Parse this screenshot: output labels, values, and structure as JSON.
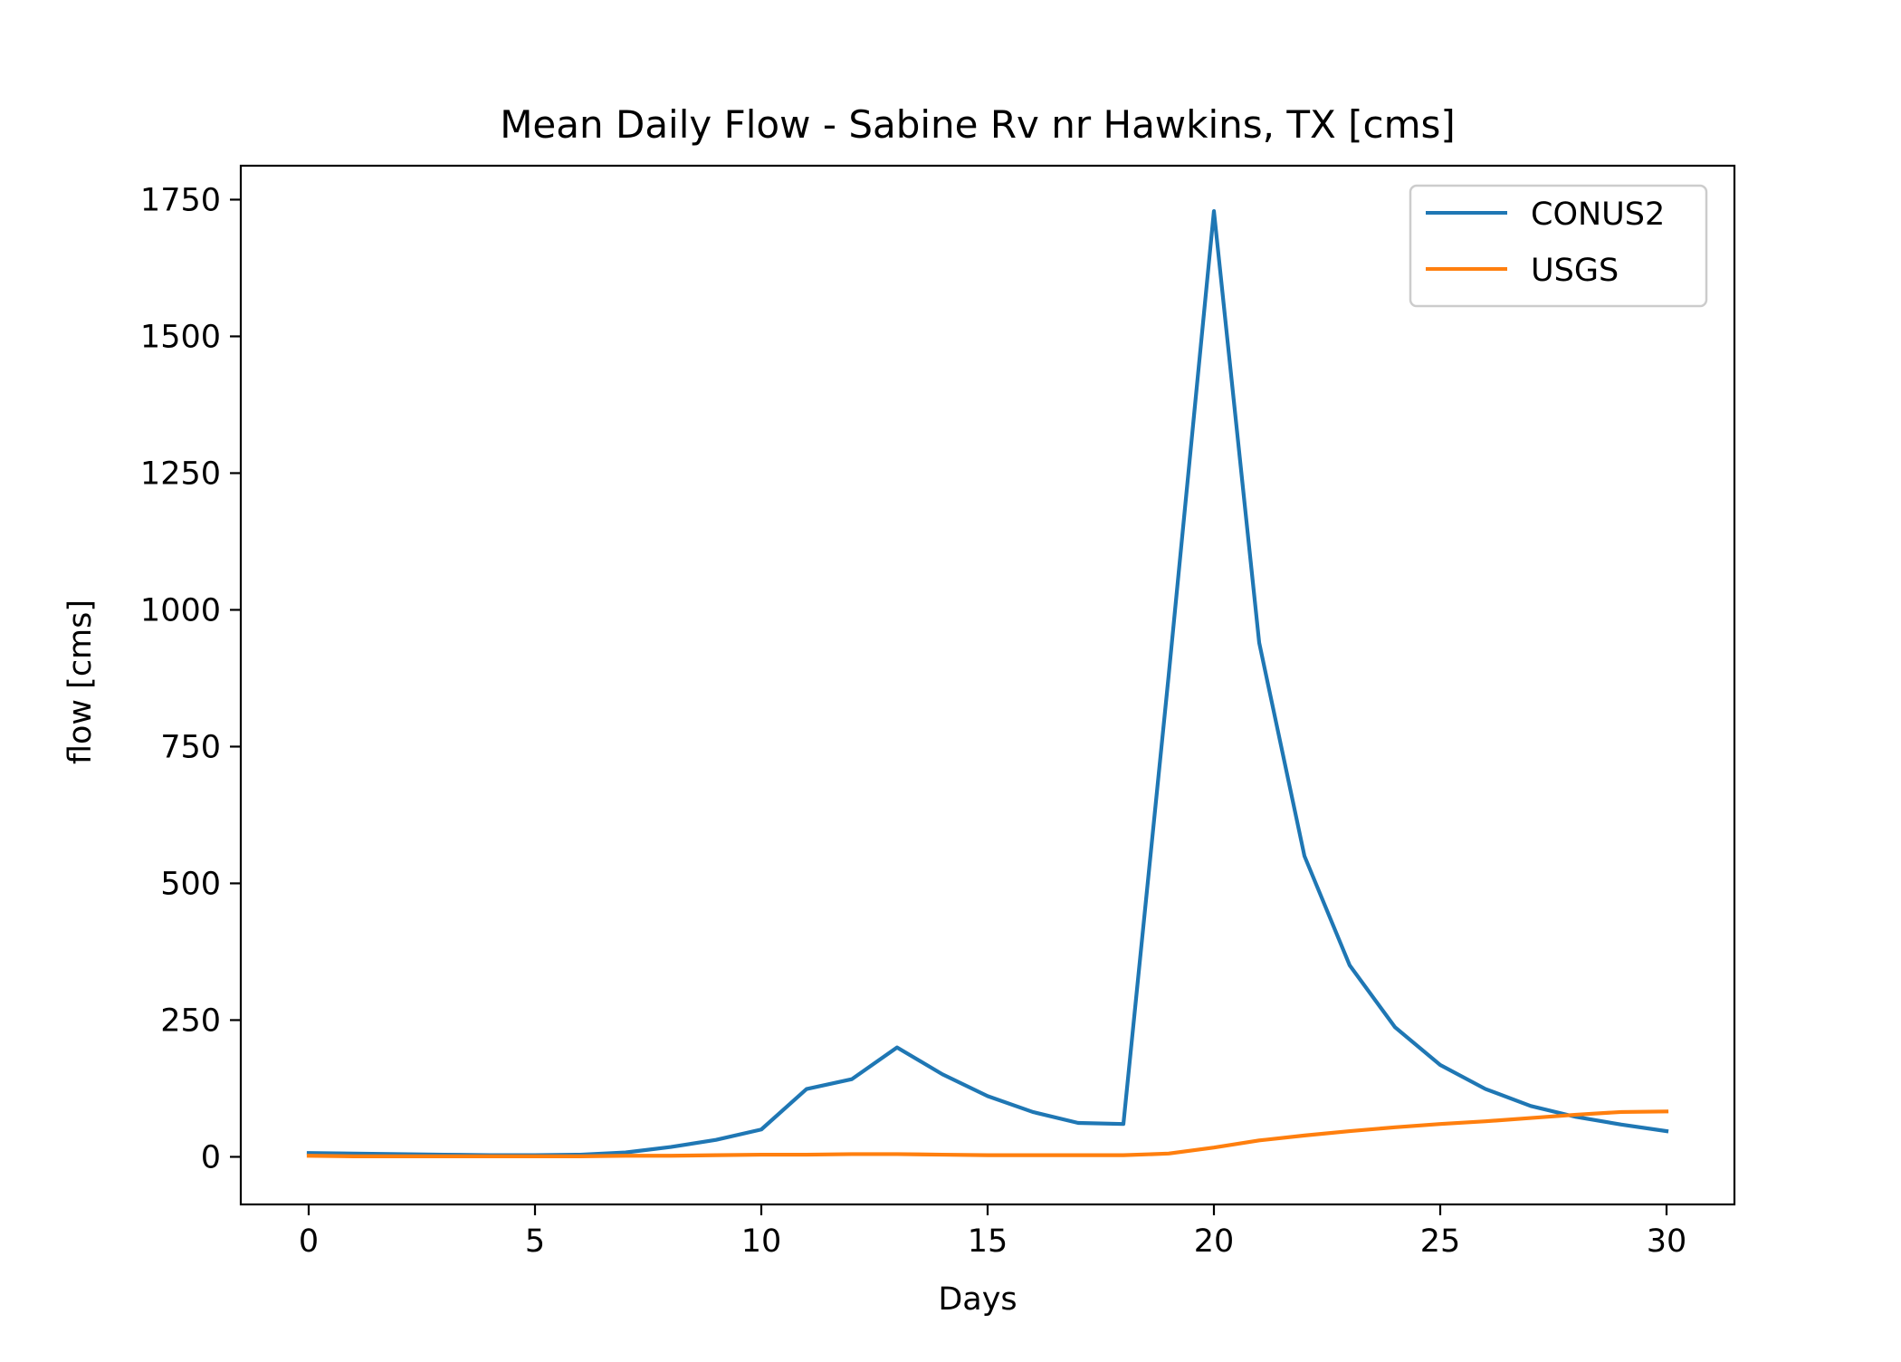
{
  "chart_data": {
    "type": "line",
    "title": "Mean Daily Flow - Sabine Rv nr Hawkins, TX [cms]",
    "xlabel": "Days",
    "ylabel": "flow [cms]",
    "xlim": [
      -1.5,
      31.5
    ],
    "ylim": [
      -87,
      1812
    ],
    "xticks": [
      0,
      5,
      10,
      15,
      20,
      25,
      30
    ],
    "yticks": [
      0,
      250,
      500,
      750,
      1000,
      1250,
      1500,
      1750
    ],
    "grid": false,
    "legend_position": "top-right",
    "x": [
      0,
      1,
      2,
      3,
      4,
      5,
      6,
      7,
      8,
      9,
      10,
      11,
      12,
      13,
      14,
      15,
      16,
      17,
      18,
      19,
      20,
      21,
      22,
      23,
      24,
      25,
      26,
      27,
      28,
      29,
      30
    ],
    "series": [
      {
        "name": "CONUS2",
        "color": "#1f77b4",
        "values": [
          7,
          6,
          5,
          4,
          3,
          3,
          4,
          8,
          18,
          31,
          50,
          124,
          142,
          200,
          151,
          111,
          82,
          62,
          60,
          880,
          1729,
          940,
          550,
          350,
          237,
          168,
          124,
          93,
          73,
          59,
          47
        ]
      },
      {
        "name": "USGS",
        "color": "#ff7f0e",
        "values": [
          2,
          1,
          1,
          1,
          1,
          1,
          1,
          2,
          2,
          3,
          4,
          4,
          5,
          5,
          4,
          3,
          3,
          3,
          3,
          6,
          17,
          30,
          39,
          47,
          54,
          60,
          65,
          71,
          77,
          82,
          83
        ]
      }
    ]
  }
}
